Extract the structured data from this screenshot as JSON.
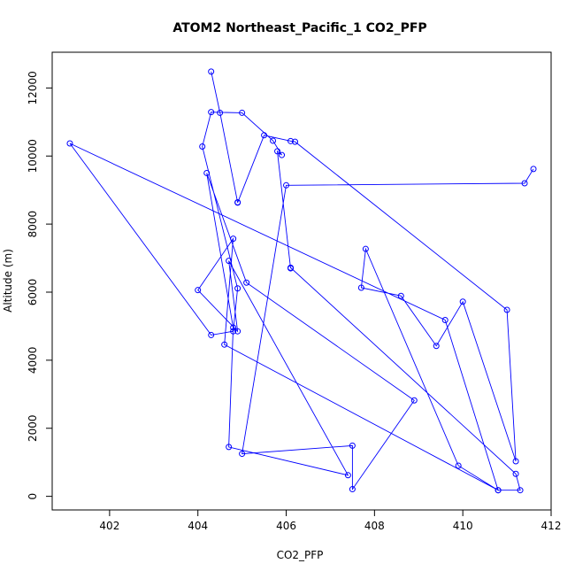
{
  "chart_data": {
    "type": "line",
    "title": "ATOM2 Northeast_Pacific_1 CO2_PFP",
    "xlabel": "CO2_PFP",
    "ylabel": "Altitude (m)",
    "xlim": [
      400.7,
      412.0
    ],
    "ylim": [
      -400,
      13050
    ],
    "x_ticks": [
      402,
      404,
      406,
      408,
      410,
      412
    ],
    "y_ticks": [
      0,
      2000,
      4000,
      6000,
      8000,
      10000,
      12000
    ],
    "marker": "open-circle",
    "color": "#0000ff",
    "grid": false,
    "legend": "none",
    "series": [
      {
        "x": [
          404.3,
          404.5,
          404.9,
          404.9,
          405.5,
          406.1,
          406.2,
          411.0,
          411.2,
          410.0,
          409.4,
          408.6,
          407.7,
          407.8,
          409.9,
          410.8,
          411.3,
          411.2,
          406.1,
          406.1,
          405.8,
          405.9,
          405.7,
          405.0,
          404.3,
          404.1,
          404.9,
          404.8,
          404.3,
          401.1,
          409.6,
          410.8,
          404.6,
          404.8,
          404.0,
          404.9,
          404.7,
          407.4,
          404.7,
          404.8,
          404.2,
          405.1,
          408.9,
          407.5,
          407.5,
          405.0,
          406.0,
          411.4,
          411.6
        ],
        "y": [
          12480,
          11270,
          8640,
          8630,
          10610,
          10440,
          10420,
          5480,
          1030,
          5720,
          4420,
          5890,
          6130,
          7270,
          900,
          180,
          180,
          660,
          6720,
          6700,
          10140,
          10030,
          10450,
          11270,
          11290,
          10280,
          6110,
          4850,
          4740,
          10370,
          5180,
          180,
          4460,
          7570,
          6060,
          4850,
          6920,
          620,
          1450,
          4960,
          9500,
          6280,
          2820,
          210,
          1490,
          1250,
          9140,
          9200,
          9620
        ]
      }
    ]
  }
}
